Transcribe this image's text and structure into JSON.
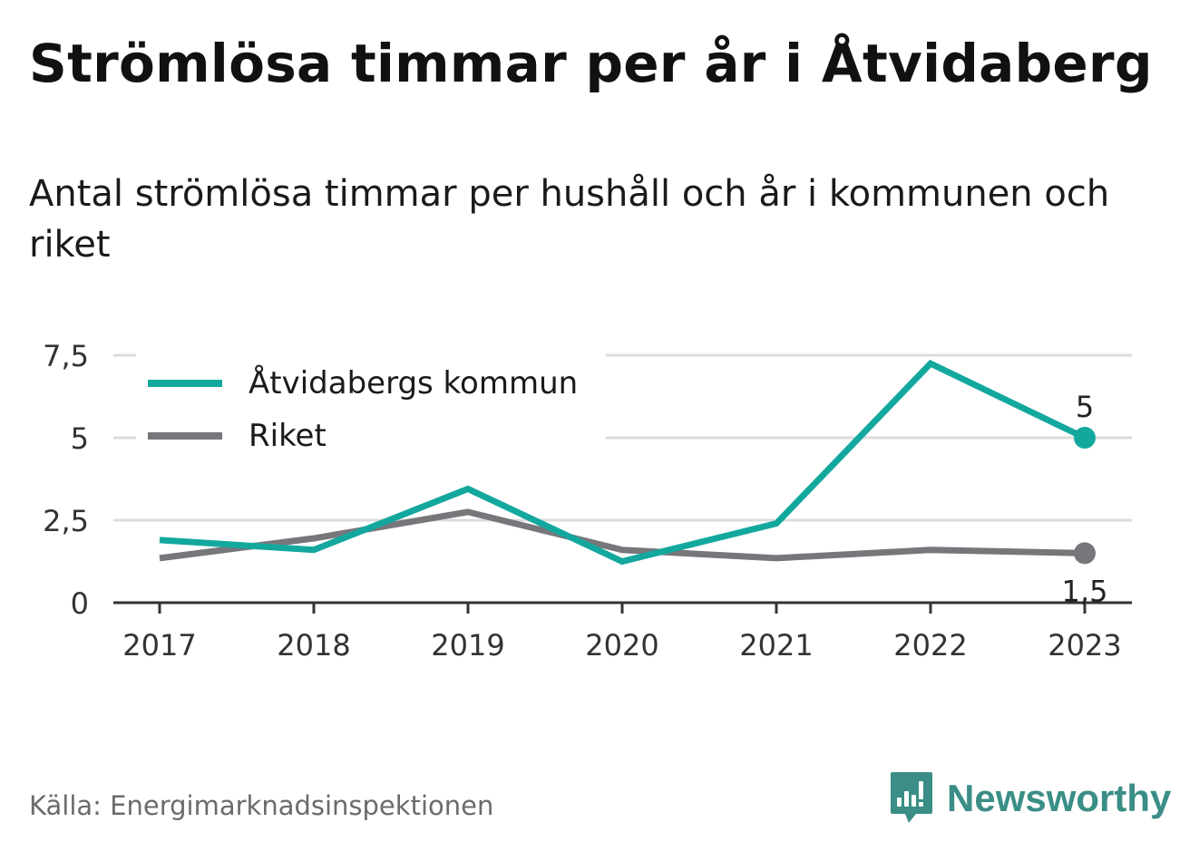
{
  "title": "Strömlösa timmar per år i Åtvidaberg",
  "subtitle": "Antal strömlösa timmar per hushåll och år i kommunen och riket",
  "source": "Källa: Energimarknadsinspektionen",
  "brand": {
    "name": "Newsworthy",
    "icon": "newsworthy-logo-icon",
    "color": "#3a8e86"
  },
  "colors": {
    "kommun": "#13a89e",
    "riket": "#77767b",
    "grid": "#dcdcdc",
    "axis": "#333333"
  },
  "chart_data": {
    "type": "line",
    "x": [
      "2017",
      "2018",
      "2019",
      "2020",
      "2021",
      "2022",
      "2023"
    ],
    "ylim": [
      0,
      7.5
    ],
    "yticks": [
      0,
      2.5,
      5,
      7.5
    ],
    "ytick_labels": [
      "0",
      "2,5",
      "5",
      "7,5"
    ],
    "grid": true,
    "legend_position": "top-left",
    "series": [
      {
        "name": "Åtvidabergs kommun",
        "color": "#13a89e",
        "values": [
          1.9,
          1.6,
          3.45,
          1.25,
          2.4,
          7.25,
          5.0
        ],
        "end_label": "5"
      },
      {
        "name": "Riket",
        "color": "#77767b",
        "values": [
          1.35,
          1.95,
          2.75,
          1.6,
          1.35,
          1.6,
          1.5
        ],
        "end_label": "1,5"
      }
    ]
  }
}
